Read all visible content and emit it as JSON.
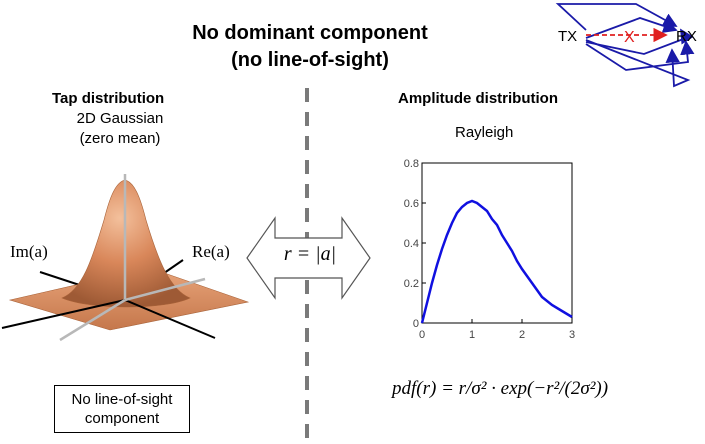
{
  "title": {
    "line1": "No dominant component",
    "line2": "(no line-of-sight)"
  },
  "multipath": {
    "tx_label": "TX",
    "rx_label": "RX",
    "blocked_marker": "X",
    "path_color": "#1a1aa8",
    "los_color": "#e02020"
  },
  "left_panel": {
    "heading": "Tap distribution",
    "subtitle_line1": "2D Gaussian",
    "subtitle_line2": "(zero mean)",
    "axis_im": "Im(a)",
    "axis_re": "Re(a)",
    "surface_color": "#d9875a",
    "note_line1": "No line-of-sight",
    "note_line2": "component"
  },
  "relation": "r = |a|",
  "right_panel": {
    "heading": "Amplitude distribution",
    "subtitle": "Rayleigh",
    "formula": "pdf(r) = r/σ² · exp(−r²/(2σ²))"
  },
  "chart_data": {
    "type": "line",
    "title": "",
    "xlabel": "",
    "ylabel": "",
    "xlim": [
      0,
      3
    ],
    "ylim": [
      0,
      0.8
    ],
    "xticks": [
      "0",
      "1",
      "2",
      "3"
    ],
    "yticks": [
      "0",
      "0.2",
      "0.4",
      "0.6",
      "0.8"
    ],
    "series": [
      {
        "color": "#1010e0",
        "x": [
          0,
          0.1,
          0.2,
          0.3,
          0.4,
          0.5,
          0.6,
          0.7,
          0.8,
          0.9,
          1.0,
          1.1,
          1.2,
          1.3,
          1.4,
          1.5,
          1.6,
          1.7,
          1.8,
          1.9,
          2.0,
          2.2,
          2.4,
          2.6,
          2.8,
          3.0
        ],
        "y": [
          0,
          0.1,
          0.2,
          0.29,
          0.37,
          0.44,
          0.5,
          0.55,
          0.58,
          0.6,
          0.61,
          0.6,
          0.58,
          0.56,
          0.52,
          0.49,
          0.44,
          0.4,
          0.36,
          0.31,
          0.27,
          0.2,
          0.13,
          0.09,
          0.06,
          0.03
        ]
      }
    ]
  }
}
